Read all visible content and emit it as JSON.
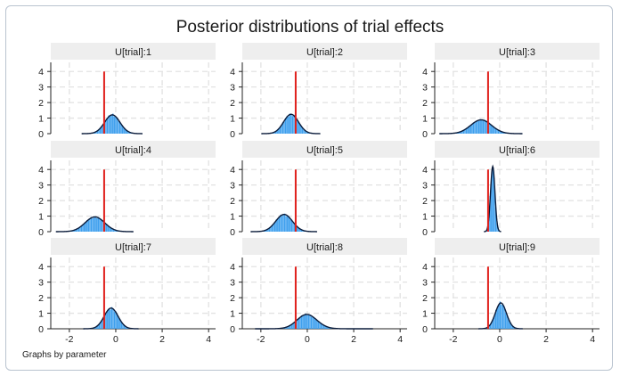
{
  "title": "Posterior distributions of trial effects",
  "note": "Graphs by parameter",
  "colors": {
    "histogram": "#3fa0ee",
    "density": "#0a1b3a",
    "reference_line": "#e0201b",
    "header_bg": "#eeeeee",
    "grid": "#e2e2e2"
  },
  "chart_data": {
    "type": "histogram",
    "x_ticks": [
      -2,
      0,
      2,
      4
    ],
    "y_ticks": [
      0,
      1,
      2,
      3,
      4
    ],
    "xlim": [
      -2.8,
      4.3
    ],
    "ylim": [
      0,
      4.7
    ],
    "grid": true,
    "reference_line": {
      "x": -0.5,
      "height": 4
    },
    "panels": [
      {
        "label": "U[trial]:1",
        "mean": -0.15,
        "sd": 0.33
      },
      {
        "label": "U[trial]:2",
        "mean": -0.7,
        "sd": 0.32
      },
      {
        "label": "U[trial]:3",
        "mean": -0.8,
        "sd": 0.45
      },
      {
        "label": "U[trial]:4",
        "mean": -0.9,
        "sd": 0.42
      },
      {
        "label": "U[trial]:5",
        "mean": -1.0,
        "sd": 0.36
      },
      {
        "label": "U[trial]:6",
        "mean": -0.3,
        "sd": 0.095
      },
      {
        "label": "U[trial]:7",
        "mean": -0.2,
        "sd": 0.3
      },
      {
        "label": "U[trial]:8",
        "mean": -0.25,
        "sd": 0.5,
        "skew": 0.8
      },
      {
        "label": "U[trial]:9",
        "mean": 0.05,
        "sd": 0.24
      }
    ]
  }
}
